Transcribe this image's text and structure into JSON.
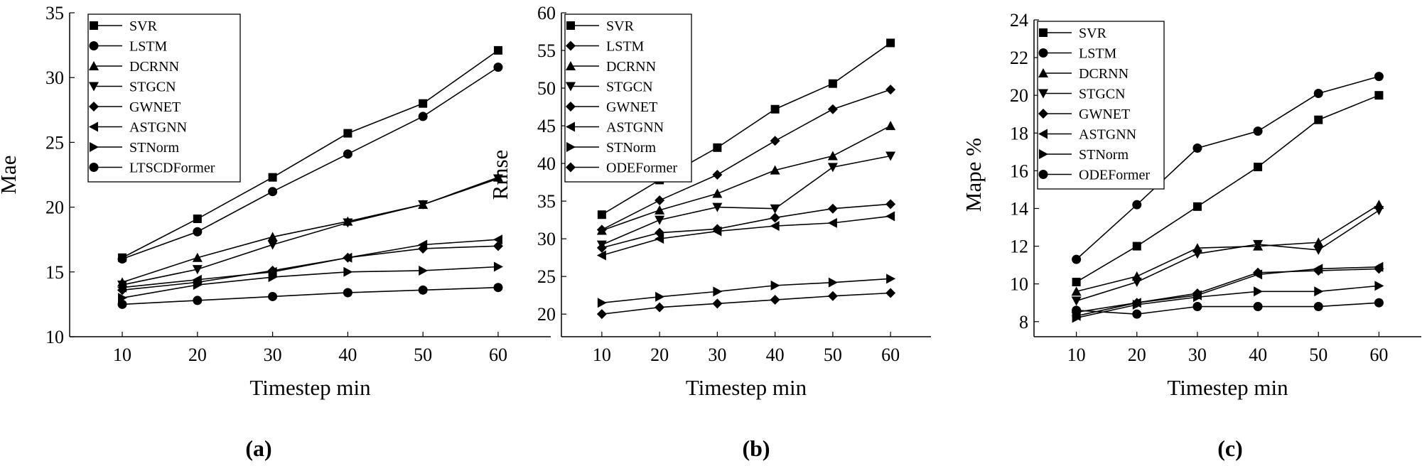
{
  "chart_data": [
    {
      "type": "line",
      "panel_label": "(a)",
      "xlabel": "Timestep min",
      "ylabel": "Mae",
      "x": [
        10,
        20,
        30,
        40,
        50,
        60
      ],
      "xlim": [
        3,
        67
      ],
      "ylim": [
        10,
        35
      ],
      "yticks": [
        10,
        15,
        20,
        25,
        30,
        35
      ],
      "grid": false,
      "legend_position": "top-left",
      "series": [
        {
          "name": "SVR",
          "marker": "square",
          "values": [
            16.1,
            19.1,
            22.3,
            25.7,
            28.0,
            32.1
          ]
        },
        {
          "name": "LSTM",
          "marker": "circle",
          "values": [
            16.0,
            18.1,
            21.2,
            24.1,
            27.0,
            30.8
          ]
        },
        {
          "name": "DCRNN",
          "marker": "triangle-up",
          "values": [
            14.2,
            16.1,
            17.7,
            18.9,
            20.2,
            22.3
          ]
        },
        {
          "name": "STGCN",
          "marker": "triangle-down",
          "values": [
            14.0,
            15.2,
            17.1,
            18.8,
            20.2,
            22.2
          ]
        },
        {
          "name": "GWNET",
          "marker": "diamond",
          "values": [
            13.6,
            14.2,
            15.1,
            16.1,
            16.8,
            17.0
          ]
        },
        {
          "name": "ASTGNN",
          "marker": "triangle-left",
          "values": [
            13.8,
            14.4,
            15.0,
            16.1,
            17.1,
            17.5
          ]
        },
        {
          "name": "STNorm",
          "marker": "triangle-right",
          "values": [
            13.0,
            14.0,
            14.6,
            15.0,
            15.1,
            15.4
          ]
        },
        {
          "name": "LTSCDFormer",
          "marker": "circle",
          "values": [
            12.5,
            12.8,
            13.1,
            13.4,
            13.6,
            13.8
          ]
        }
      ]
    },
    {
      "type": "line",
      "panel_label": "(b)",
      "xlabel": "Timestep min",
      "ylabel": "Rmse",
      "x": [
        10,
        20,
        30,
        40,
        50,
        60
      ],
      "xlim": [
        3,
        67
      ],
      "ylim": [
        17,
        60
      ],
      "yticks": [
        20,
        25,
        30,
        35,
        40,
        45,
        50,
        55,
        60
      ],
      "grid": false,
      "legend_position": "top-left",
      "series": [
        {
          "name": "SVR",
          "marker": "square",
          "values": [
            33.2,
            37.8,
            42.1,
            47.2,
            50.6,
            56.0
          ]
        },
        {
          "name": "LSTM",
          "marker": "diamond",
          "values": [
            31.2,
            35.1,
            38.5,
            43.0,
            47.2,
            49.8
          ]
        },
        {
          "name": "DCRNN",
          "marker": "triangle-up",
          "values": [
            31.1,
            33.8,
            36.0,
            39.1,
            41.0,
            45.0
          ]
        },
        {
          "name": "STGCN",
          "marker": "triangle-down",
          "values": [
            29.2,
            32.5,
            34.2,
            34.0,
            39.5,
            41.0
          ]
        },
        {
          "name": "GWNET",
          "marker": "diamond",
          "values": [
            28.8,
            30.8,
            31.3,
            32.8,
            34.0,
            34.6
          ]
        },
        {
          "name": "ASTGNN",
          "marker": "triangle-left",
          "values": [
            27.8,
            30.0,
            31.0,
            31.7,
            32.1,
            33.0
          ]
        },
        {
          "name": "STNorm",
          "marker": "triangle-right",
          "values": [
            21.5,
            22.3,
            23.0,
            23.8,
            24.2,
            24.7
          ]
        },
        {
          "name": "ODEFormer",
          "marker": "diamond",
          "values": [
            20.0,
            20.9,
            21.4,
            21.9,
            22.4,
            22.8
          ]
        }
      ]
    },
    {
      "type": "line",
      "panel_label": "(c)",
      "xlabel": "Timestep min",
      "ylabel": "Mape %",
      "x": [
        10,
        20,
        30,
        40,
        50,
        60
      ],
      "xlim": [
        3,
        67
      ],
      "ylim": [
        7.2,
        24
      ],
      "yticks": [
        8,
        10,
        12,
        14,
        16,
        18,
        20,
        22,
        24
      ],
      "grid": false,
      "legend_position": "top-left",
      "series": [
        {
          "name": "SVR",
          "marker": "square",
          "values": [
            10.1,
            12.0,
            14.1,
            16.2,
            18.7,
            20.0
          ]
        },
        {
          "name": "LSTM",
          "marker": "circle",
          "values": [
            11.3,
            14.2,
            17.2,
            18.1,
            20.1,
            21.0
          ]
        },
        {
          "name": "DCRNN",
          "marker": "triangle-up",
          "values": [
            9.6,
            10.4,
            11.9,
            12.0,
            12.2,
            14.2
          ]
        },
        {
          "name": "STGCN",
          "marker": "triangle-down",
          "values": [
            9.1,
            10.1,
            11.6,
            12.1,
            11.8,
            13.9
          ]
        },
        {
          "name": "GWNET",
          "marker": "diamond",
          "values": [
            8.5,
            9.0,
            9.5,
            10.6,
            10.7,
            10.8
          ]
        },
        {
          "name": "ASTGNN",
          "marker": "triangle-left",
          "values": [
            8.3,
            9.0,
            9.4,
            10.5,
            10.8,
            10.9
          ]
        },
        {
          "name": "STNorm",
          "marker": "triangle-right",
          "values": [
            8.2,
            8.9,
            9.3,
            9.6,
            9.6,
            9.9
          ]
        },
        {
          "name": "ODEFormer",
          "marker": "circle",
          "values": [
            8.6,
            8.4,
            8.8,
            8.8,
            8.8,
            9.0
          ]
        }
      ]
    }
  ]
}
